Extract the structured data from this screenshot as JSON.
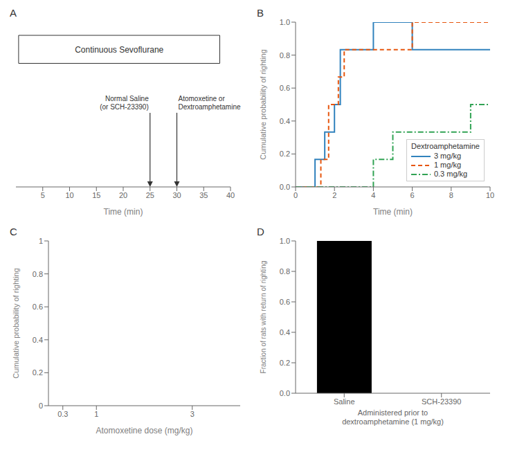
{
  "chart_data": [
    {
      "type": "timeline",
      "title": "A",
      "xlabel": "Time (min)",
      "xlim": [
        0,
        40
      ],
      "xticks": [
        5,
        10,
        15,
        20,
        25,
        30,
        35,
        40
      ],
      "tick_labels": "x",
      "span": {
        "text": "Continuous Sevoflurane",
        "x": [
          0.5,
          38
        ]
      },
      "annotations": [
        {
          "x": 25,
          "text": [
            "Normal Saline",
            "(or SCH-23390)"
          ]
        },
        {
          "x": 30,
          "text": [
            "Atomoxetine or",
            "Dextroamphetamine"
          ]
        }
      ]
    },
    {
      "type": "step",
      "title": "B",
      "xlabel": "Time (min)",
      "ylabel": "Cumulative probability of righting",
      "xlim": [
        0,
        10
      ],
      "ylim": [
        0,
        1
      ],
      "xticks": [
        0,
        2,
        4,
        6,
        8,
        10
      ],
      "yticks": [
        {
          "value": 0,
          "label": "0.0"
        },
        {
          "value": 0.2,
          "label": "0.2"
        },
        {
          "value": 0.4,
          "label": "0.4"
        },
        {
          "value": 0.6,
          "label": "0.6"
        },
        {
          "value": 0.8,
          "label": "0.8"
        },
        {
          "value": 1,
          "label": "1.0"
        }
      ],
      "legend": "lower right",
      "legend_title": "Dextroamphetamine",
      "series": [
        {
          "name": "3 mg/kg",
          "line_style": "solid",
          "x": [
            0,
            1.0,
            1.5,
            2.0,
            2.3,
            4.0,
            6.0,
            10
          ],
          "values": [
            0,
            0.167,
            0.333,
            0.5,
            0.833,
            1.0,
            0.833,
            0.833
          ]
        },
        {
          "name": "1 mg/kg",
          "line_style": "dashed",
          "x": [
            0,
            1.3,
            1.7,
            2.2,
            2.5,
            6.0,
            10
          ],
          "values": [
            0,
            0.167,
            0.5,
            0.667,
            0.833,
            1.0,
            1.0
          ]
        },
        {
          "name": "0.3 mg/kg",
          "line_style": "dashdot",
          "x": [
            0,
            4.0,
            4.5,
            5.0,
            9.0,
            10
          ],
          "values": [
            0,
            0.167,
            0.167,
            0.333,
            0.5,
            0.5
          ]
        }
      ]
    },
    {
      "type": "axes",
      "title": "C",
      "xlabel": "Atomoxetine dose (mg/kg)",
      "ylabel": "Cumulative probability of righting",
      "xlim": [
        0,
        4
      ],
      "ylim": [
        0,
        1
      ],
      "xticks": [
        0.3,
        1,
        3
      ],
      "yticks": [
        0,
        0.2,
        0.4,
        0.6,
        0.8,
        1
      ]
    },
    {
      "type": "bar",
      "title": "D",
      "ylabel": "Fraction of rats with return of righting",
      "xlabel": [
        "Administered prior to",
        "dextroamphetamine (1 mg/kg)"
      ],
      "categories": [
        "Saline",
        "SCH-23390"
      ],
      "values": [
        1.0,
        0.0
      ],
      "color": "#000000",
      "ylim": [
        0,
        1
      ],
      "yticks": [
        {
          "value": 0,
          "label": "0.0"
        },
        {
          "value": 0.2,
          "label": "0.2"
        },
        {
          "value": 0.4,
          "label": "0.4"
        },
        {
          "value": 0.6,
          "label": "0.6"
        },
        {
          "value": 0.8,
          "label": "0.8"
        },
        {
          "value": 1,
          "label": "1.0"
        }
      ]
    }
  ]
}
